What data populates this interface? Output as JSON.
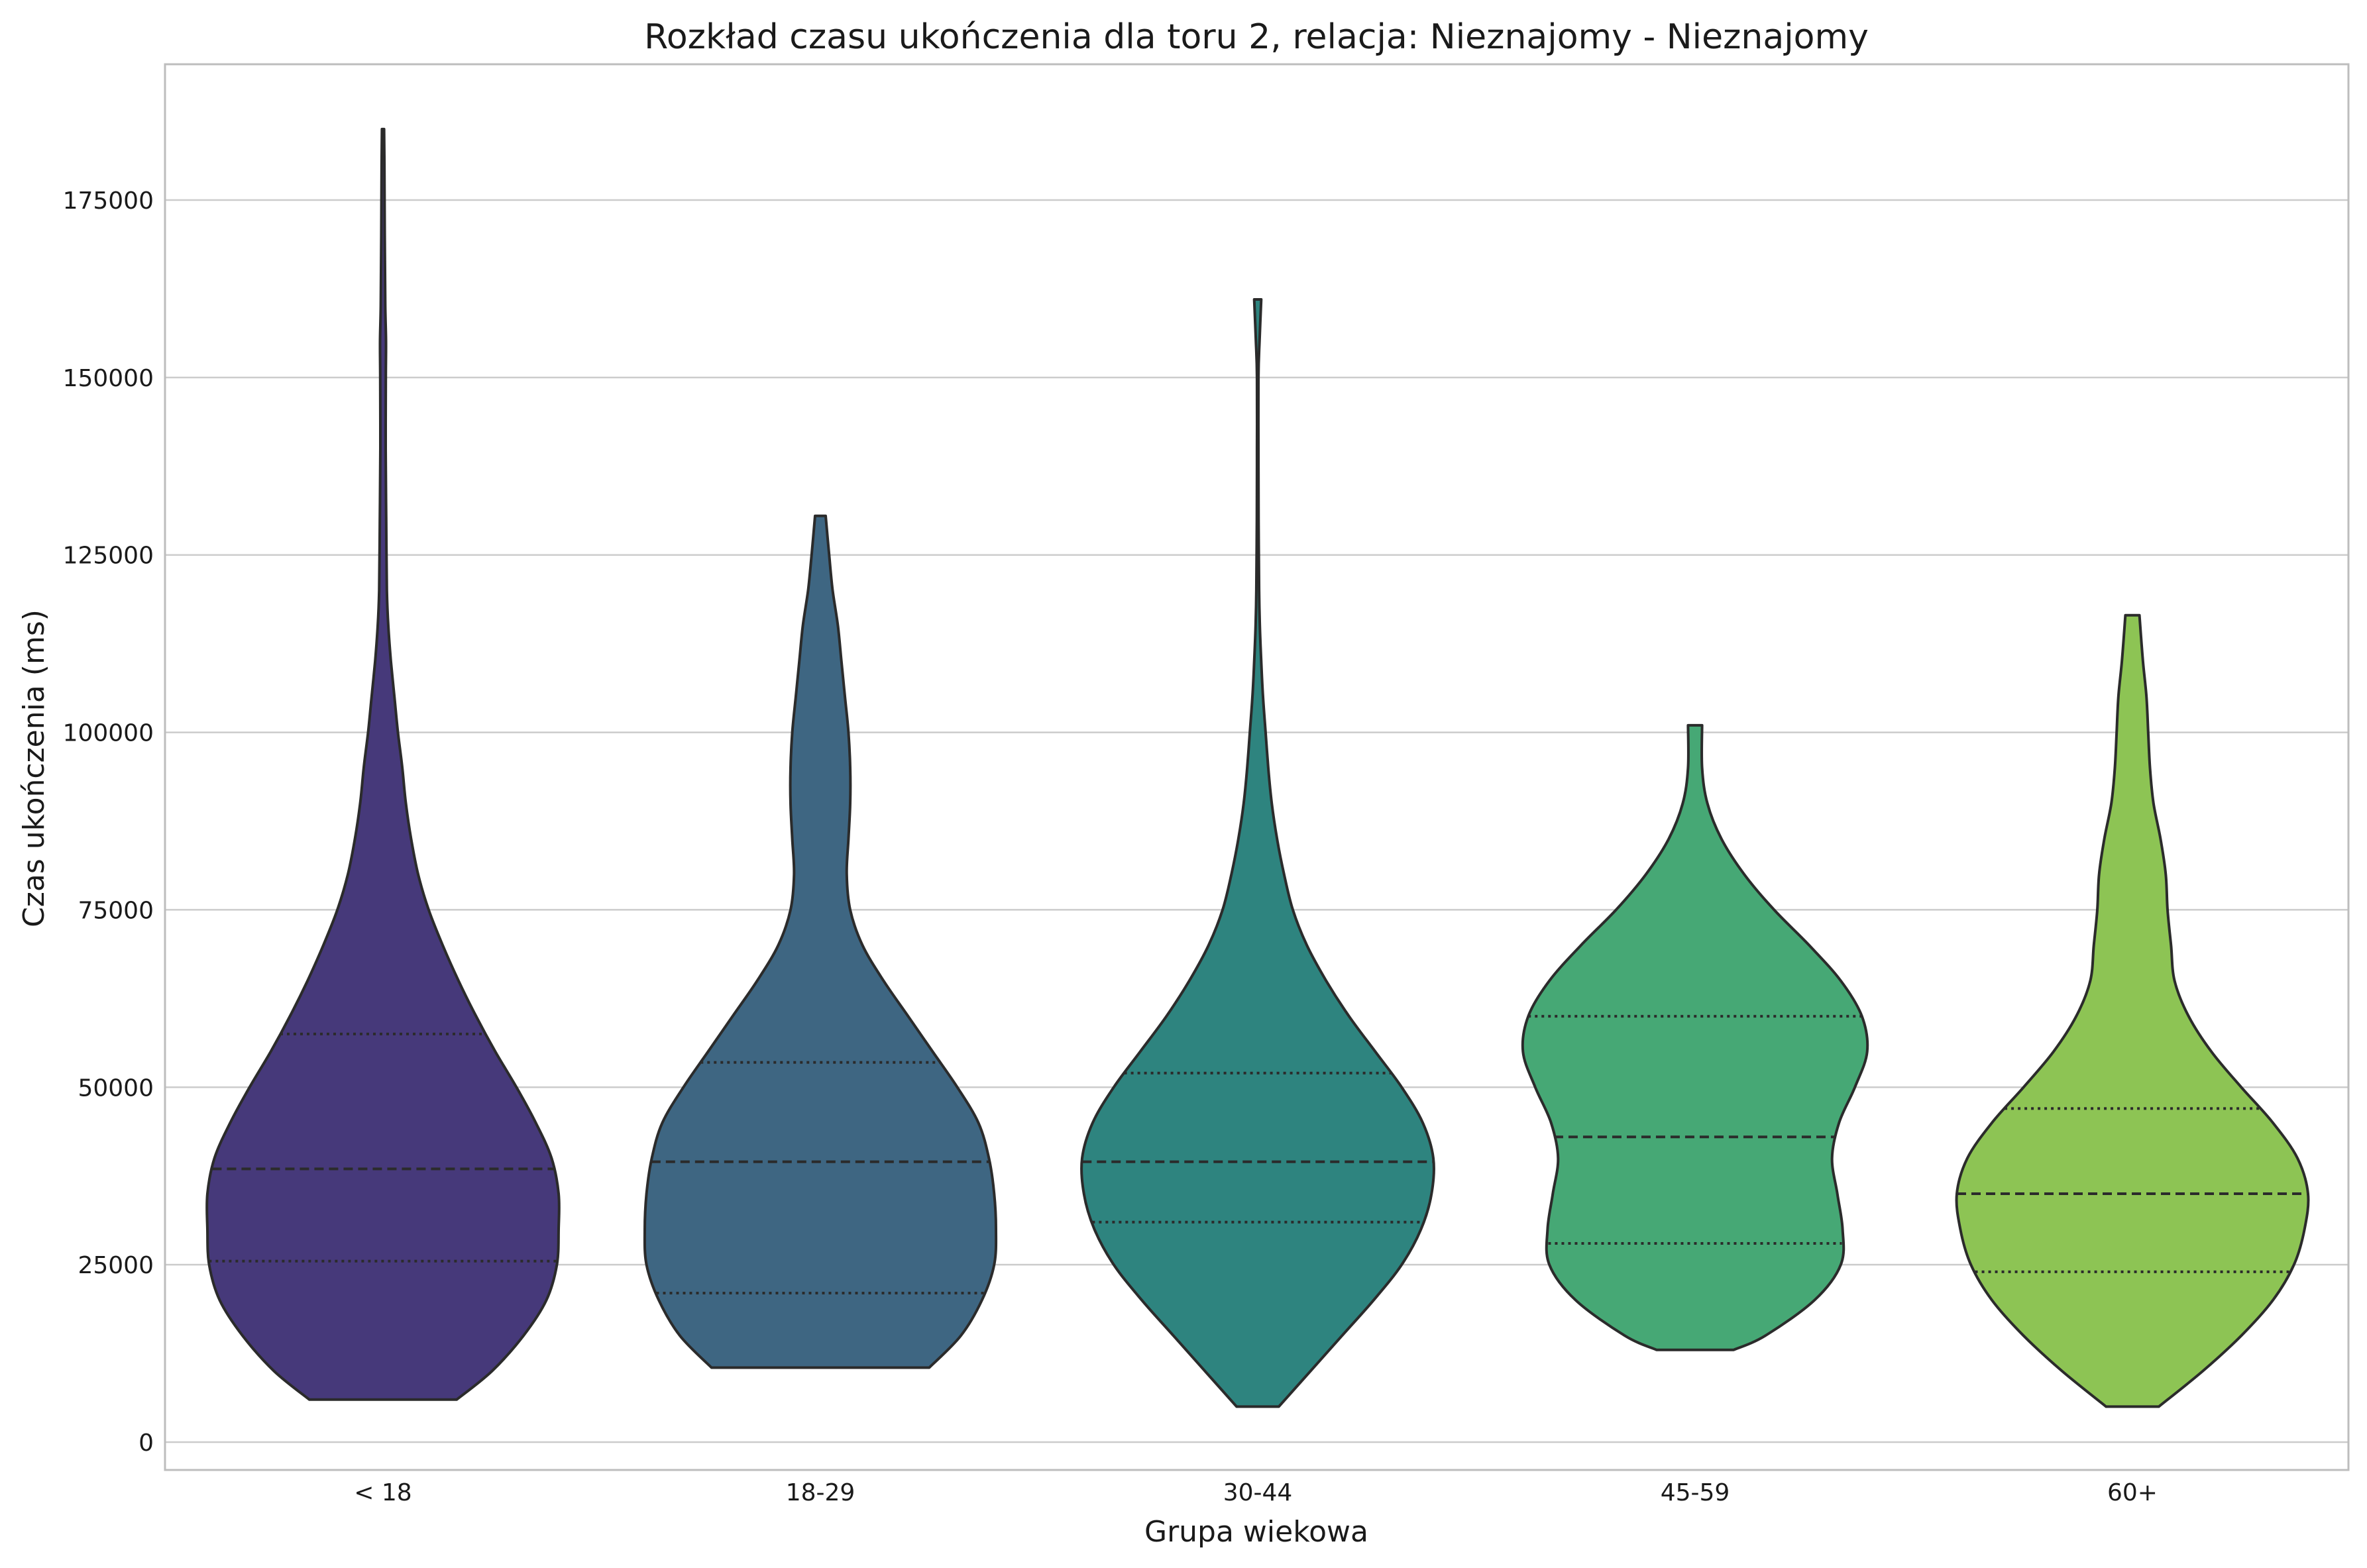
{
  "chart_data": {
    "type": "violin",
    "title": "Rozkład czasu ukończenia dla toru 2, relacja: Nieznajomy - Nieznajomy",
    "xlabel": "Grupa wiekowa",
    "ylabel": "Czas ukończenia (ms)",
    "ylim": [
      -4000,
      195000
    ],
    "yticks": [
      0,
      25000,
      50000,
      75000,
      100000,
      125000,
      150000,
      175000
    ],
    "grid": true,
    "categories": [
      "< 18",
      "18-29",
      "30-44",
      "45-59",
      "60+"
    ],
    "series": [
      {
        "name": "< 18",
        "color": "#46397a",
        "min": 6000,
        "max": 185000,
        "q1": 25500,
        "median": 38500,
        "q3": 57500,
        "density": [
          [
            6000,
            0.42
          ],
          [
            10000,
            0.62
          ],
          [
            15000,
            0.8
          ],
          [
            20000,
            0.93
          ],
          [
            25000,
            0.99
          ],
          [
            30000,
            1.0
          ],
          [
            35000,
            1.0
          ],
          [
            40000,
            0.96
          ],
          [
            45000,
            0.87
          ],
          [
            50000,
            0.76
          ],
          [
            55000,
            0.64
          ],
          [
            60000,
            0.53
          ],
          [
            65000,
            0.43
          ],
          [
            70000,
            0.34
          ],
          [
            75000,
            0.26
          ],
          [
            80000,
            0.2
          ],
          [
            85000,
            0.16
          ],
          [
            90000,
            0.13
          ],
          [
            95000,
            0.11
          ],
          [
            100000,
            0.085
          ],
          [
            105000,
            0.065
          ],
          [
            110000,
            0.045
          ],
          [
            115000,
            0.03
          ],
          [
            120000,
            0.022
          ],
          [
            130000,
            0.018
          ],
          [
            140000,
            0.015
          ],
          [
            150000,
            0.016
          ],
          [
            155000,
            0.017
          ],
          [
            160000,
            0.013
          ],
          [
            170000,
            0.01
          ],
          [
            180000,
            0.008
          ],
          [
            185000,
            0.006
          ]
        ]
      },
      {
        "name": "18-29",
        "color": "#3e6682",
        "min": 10500,
        "max": 130500,
        "q1": 21000,
        "median": 39500,
        "q3": 53500,
        "density": [
          [
            10500,
            0.62
          ],
          [
            15000,
            0.8
          ],
          [
            20000,
            0.92
          ],
          [
            25000,
            0.99
          ],
          [
            30000,
            1.0
          ],
          [
            35000,
            0.99
          ],
          [
            40000,
            0.96
          ],
          [
            45000,
            0.9
          ],
          [
            50000,
            0.78
          ],
          [
            55000,
            0.64
          ],
          [
            60000,
            0.5
          ],
          [
            65000,
            0.36
          ],
          [
            70000,
            0.24
          ],
          [
            75000,
            0.17
          ],
          [
            80000,
            0.15
          ],
          [
            85000,
            0.16
          ],
          [
            90000,
            0.17
          ],
          [
            95000,
            0.17
          ],
          [
            100000,
            0.16
          ],
          [
            105000,
            0.14
          ],
          [
            110000,
            0.12
          ],
          [
            115000,
            0.1
          ],
          [
            120000,
            0.07
          ],
          [
            125000,
            0.05
          ],
          [
            130500,
            0.03
          ]
        ]
      },
      {
        "name": "30-44",
        "color": "#2e847f",
        "min": 5000,
        "max": 161000,
        "q1": 31000,
        "median": 39500,
        "q3": 52000,
        "density": [
          [
            5000,
            0.12
          ],
          [
            10000,
            0.3
          ],
          [
            15000,
            0.48
          ],
          [
            20000,
            0.66
          ],
          [
            25000,
            0.82
          ],
          [
            30000,
            0.93
          ],
          [
            35000,
            0.99
          ],
          [
            40000,
            1.0
          ],
          [
            45000,
            0.94
          ],
          [
            50000,
            0.82
          ],
          [
            55000,
            0.67
          ],
          [
            60000,
            0.52
          ],
          [
            65000,
            0.39
          ],
          [
            70000,
            0.28
          ],
          [
            75000,
            0.2
          ],
          [
            80000,
            0.15
          ],
          [
            85000,
            0.11
          ],
          [
            90000,
            0.08
          ],
          [
            95000,
            0.06
          ],
          [
            100000,
            0.045
          ],
          [
            105000,
            0.03
          ],
          [
            110000,
            0.02
          ],
          [
            115000,
            0.012
          ],
          [
            120000,
            0.008
          ],
          [
            130000,
            0.005
          ],
          [
            140000,
            0.004
          ],
          [
            150000,
            0.004
          ],
          [
            155000,
            0.01
          ],
          [
            161000,
            0.02
          ]
        ]
      },
      {
        "name": "45-59",
        "color": "#46a875",
        "min": 13000,
        "max": 101000,
        "q1": 28000,
        "median": 43000,
        "q3": 60000,
        "density": [
          [
            13000,
            0.22
          ],
          [
            15000,
            0.4
          ],
          [
            20000,
            0.68
          ],
          [
            25000,
            0.83
          ],
          [
            30000,
            0.84
          ],
          [
            35000,
            0.81
          ],
          [
            40000,
            0.78
          ],
          [
            45000,
            0.82
          ],
          [
            50000,
            0.91
          ],
          [
            55000,
            0.98
          ],
          [
            60000,
            0.95
          ],
          [
            65000,
            0.83
          ],
          [
            70000,
            0.65
          ],
          [
            75000,
            0.45
          ],
          [
            80000,
            0.28
          ],
          [
            85000,
            0.15
          ],
          [
            90000,
            0.07
          ],
          [
            95000,
            0.04
          ],
          [
            101000,
            0.04
          ]
        ]
      },
      {
        "name": "60+",
        "color": "#8dc454",
        "min": 5000,
        "max": 116500,
        "q1": 24000,
        "median": 35000,
        "q3": 47000,
        "density": [
          [
            5000,
            0.15
          ],
          [
            10000,
            0.4
          ],
          [
            15000,
            0.62
          ],
          [
            20000,
            0.8
          ],
          [
            25000,
            0.92
          ],
          [
            30000,
            0.98
          ],
          [
            35000,
            1.0
          ],
          [
            40000,
            0.94
          ],
          [
            45000,
            0.8
          ],
          [
            50000,
            0.62
          ],
          [
            55000,
            0.45
          ],
          [
            60000,
            0.32
          ],
          [
            65000,
            0.24
          ],
          [
            70000,
            0.22
          ],
          [
            75000,
            0.2
          ],
          [
            80000,
            0.19
          ],
          [
            85000,
            0.16
          ],
          [
            90000,
            0.12
          ],
          [
            95000,
            0.1
          ],
          [
            100000,
            0.09
          ],
          [
            105000,
            0.08
          ],
          [
            110000,
            0.06
          ],
          [
            116500,
            0.04
          ]
        ]
      }
    ]
  }
}
